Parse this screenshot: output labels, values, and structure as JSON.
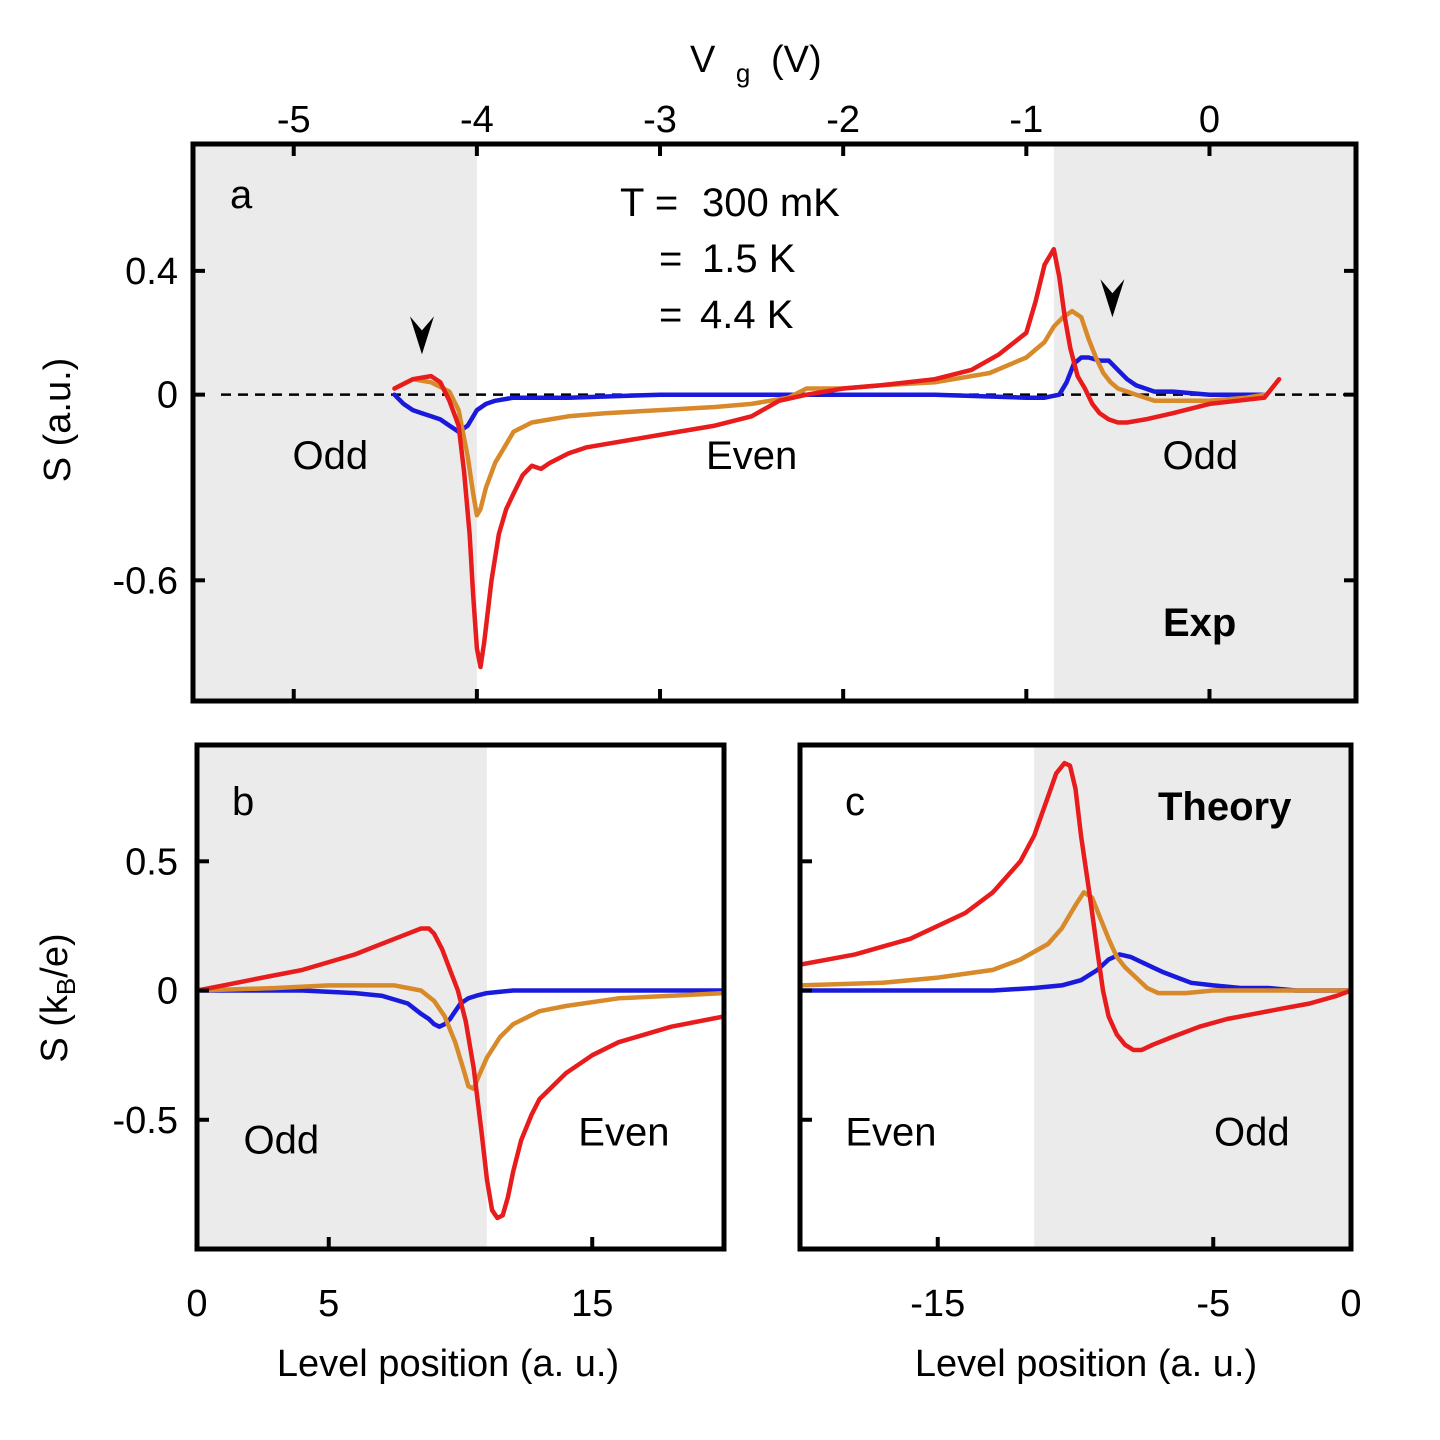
{
  "colors": {
    "t300mK": "#1a1adc",
    "t1_5K": "#d88a2a",
    "t4_4K": "#e81c1c",
    "shade": "#ebebeb",
    "frame": "#000000"
  },
  "legend": {
    "prefix_first": "T =",
    "prefix_rest": "=",
    "entries": [
      {
        "label": "300 mK",
        "color_key": "t300mK"
      },
      {
        "label": "1.5 K",
        "color_key": "t1_5K"
      },
      {
        "label": "4.4 K",
        "color_key": "t4_4K"
      }
    ]
  },
  "chart_data": [
    {
      "id": "a",
      "type": "line",
      "panel_label": "a",
      "tag": "Exp",
      "xlabel": "V g (V)",
      "xlabel_main": "V",
      "xlabel_sub": "g",
      "xlabel_unit": "(V)",
      "ylabel": "S (a.u.)",
      "xlim": [
        -5.55,
        0.8
      ],
      "ylim": [
        -0.99,
        0.81
      ],
      "xticks": [
        -5,
        -4,
        -3,
        -2,
        -1,
        0
      ],
      "xtick_labels": [
        "-5",
        "-4",
        "-3",
        "-2",
        "-1",
        "0"
      ],
      "yticks": [
        0.4,
        0,
        -0.6
      ],
      "ytick_labels": [
        "0.4",
        "0",
        "-0.6"
      ],
      "zero_line": "dashed",
      "shaded_ranges": [
        [
          -5.55,
          -4.0
        ],
        [
          -0.85,
          0.8
        ]
      ],
      "regions": [
        {
          "label": "Odd",
          "x": -4.8,
          "y": -0.24
        },
        {
          "label": "Even",
          "x": -2.5,
          "y": -0.24
        },
        {
          "label": "Odd",
          "x": -0.05,
          "y": -0.24
        }
      ],
      "annotations": [
        {
          "type": "arrowhead",
          "x": -4.3,
          "y": 0.13
        },
        {
          "type": "arrowhead",
          "x": -0.53,
          "y": 0.25
        }
      ],
      "series": [
        {
          "name": "300 mK",
          "color_key": "t300mK",
          "x": [
            -4.45,
            -4.4,
            -4.35,
            -4.3,
            -4.25,
            -4.2,
            -4.15,
            -4.1,
            -4.05,
            -4.0,
            -3.95,
            -3.9,
            -3.8,
            -3.5,
            -3.0,
            -2.5,
            -2.0,
            -1.5,
            -1.0,
            -0.9,
            -0.82,
            -0.78,
            -0.74,
            -0.7,
            -0.66,
            -0.6,
            -0.55,
            -0.5,
            -0.45,
            -0.4,
            -0.35,
            -0.3,
            -0.2,
            0.0,
            0.2,
            0.3
          ],
          "y": [
            0.0,
            -0.03,
            -0.05,
            -0.06,
            -0.07,
            -0.08,
            -0.1,
            -0.12,
            -0.1,
            -0.05,
            -0.03,
            -0.02,
            -0.01,
            -0.01,
            0.0,
            0.0,
            0.0,
            0.0,
            -0.01,
            -0.01,
            0.0,
            0.04,
            0.1,
            0.12,
            0.12,
            0.11,
            0.11,
            0.08,
            0.05,
            0.03,
            0.02,
            0.01,
            0.01,
            0.0,
            0.0,
            0.0
          ]
        },
        {
          "name": "1.5 K",
          "color_key": "t1_5K",
          "x": [
            -4.45,
            -4.35,
            -4.25,
            -4.15,
            -4.1,
            -4.05,
            -4.02,
            -4.0,
            -3.98,
            -3.95,
            -3.9,
            -3.85,
            -3.8,
            -3.7,
            -3.6,
            -3.5,
            -3.3,
            -3.0,
            -2.7,
            -2.5,
            -2.3,
            -2.2,
            -2.0,
            -1.8,
            -1.5,
            -1.2,
            -1.0,
            -0.9,
            -0.85,
            -0.8,
            -0.75,
            -0.7,
            -0.66,
            -0.62,
            -0.58,
            -0.54,
            -0.5,
            -0.45,
            -0.4,
            -0.3,
            -0.2,
            0.0,
            0.2,
            0.3
          ],
          "y": [
            0.02,
            0.05,
            0.04,
            0.01,
            -0.05,
            -0.2,
            -0.32,
            -0.39,
            -0.37,
            -0.3,
            -0.22,
            -0.17,
            -0.12,
            -0.09,
            -0.08,
            -0.07,
            -0.06,
            -0.05,
            -0.04,
            -0.03,
            -0.01,
            0.02,
            0.02,
            0.03,
            0.04,
            0.07,
            0.12,
            0.17,
            0.22,
            0.25,
            0.27,
            0.25,
            0.18,
            0.12,
            0.07,
            0.04,
            0.02,
            0.01,
            0.0,
            -0.02,
            -0.02,
            -0.02,
            -0.01,
            0.0
          ]
        },
        {
          "name": "4.4 K",
          "color_key": "t4_4K",
          "x": [
            -4.45,
            -4.35,
            -4.25,
            -4.2,
            -4.15,
            -4.1,
            -4.07,
            -4.04,
            -4.02,
            -4.0,
            -3.98,
            -3.96,
            -3.92,
            -3.88,
            -3.84,
            -3.8,
            -3.75,
            -3.7,
            -3.65,
            -3.6,
            -3.5,
            -3.4,
            -3.3,
            -3.0,
            -2.7,
            -2.5,
            -2.35,
            -2.2,
            -2.0,
            -1.8,
            -1.5,
            -1.3,
            -1.15,
            -1.0,
            -0.95,
            -0.9,
            -0.85,
            -0.82,
            -0.79,
            -0.76,
            -0.72,
            -0.68,
            -0.64,
            -0.6,
            -0.55,
            -0.5,
            -0.45,
            -0.35,
            -0.2,
            0.0,
            0.15,
            0.3,
            0.38
          ],
          "y": [
            0.02,
            0.05,
            0.06,
            0.04,
            -0.02,
            -0.1,
            -0.25,
            -0.45,
            -0.65,
            -0.82,
            -0.88,
            -0.8,
            -0.6,
            -0.45,
            -0.37,
            -0.32,
            -0.26,
            -0.23,
            -0.24,
            -0.22,
            -0.19,
            -0.17,
            -0.16,
            -0.13,
            -0.1,
            -0.07,
            -0.02,
            0.0,
            0.02,
            0.03,
            0.05,
            0.08,
            0.13,
            0.2,
            0.3,
            0.42,
            0.47,
            0.38,
            0.25,
            0.15,
            0.06,
            0.02,
            -0.03,
            -0.06,
            -0.08,
            -0.09,
            -0.09,
            -0.08,
            -0.06,
            -0.03,
            -0.02,
            -0.01,
            0.05
          ]
        }
      ]
    },
    {
      "id": "b",
      "type": "line",
      "panel_label": "b",
      "xlabel": "Level position (a. u.)",
      "ylabel": "S (kB/e)",
      "ylabel_main": "S  (k",
      "ylabel_sub": "B",
      "ylabel_end": "/e)",
      "xlim": [
        0,
        20
      ],
      "ylim": [
        -1.0,
        0.95
      ],
      "xticks": [
        0,
        5,
        15
      ],
      "xtick_labels": [
        "0",
        "5",
        "15"
      ],
      "yticks": [
        0.5,
        0,
        -0.5
      ],
      "ytick_labels": [
        "0.5",
        "0",
        "-0.5"
      ],
      "shaded_ranges": [
        [
          0,
          11.0
        ]
      ],
      "regions": [
        {
          "label": "Odd",
          "x": 3.2,
          "y": -0.63
        },
        {
          "label": "Even",
          "x": 16.2,
          "y": -0.6
        }
      ],
      "series": [
        {
          "name": "300 mK",
          "color_key": "t300mK",
          "x": [
            0,
            2,
            4,
            6,
            7,
            8,
            8.5,
            8.8,
            9.0,
            9.2,
            9.4,
            9.6,
            9.8,
            10.0,
            10.3,
            10.6,
            11.0,
            12,
            13,
            14,
            16,
            18,
            20
          ],
          "y": [
            0.0,
            0.0,
            0.0,
            -0.01,
            -0.02,
            -0.05,
            -0.09,
            -0.11,
            -0.13,
            -0.14,
            -0.13,
            -0.11,
            -0.08,
            -0.05,
            -0.03,
            -0.02,
            -0.01,
            0.0,
            0.0,
            0.0,
            0.0,
            0.0,
            0.0
          ]
        },
        {
          "name": "1.5 K",
          "color_key": "t1_5K",
          "x": [
            0,
            3,
            5,
            6,
            7,
            7.5,
            8,
            8.5,
            9,
            9.4,
            9.8,
            10.1,
            10.3,
            10.5,
            10.7,
            11.0,
            11.5,
            12,
            13,
            14,
            16,
            18,
            20
          ],
          "y": [
            0.0,
            0.01,
            0.02,
            0.02,
            0.02,
            0.02,
            0.01,
            0.0,
            -0.04,
            -0.1,
            -0.2,
            -0.3,
            -0.37,
            -0.38,
            -0.33,
            -0.26,
            -0.18,
            -0.13,
            -0.08,
            -0.06,
            -0.03,
            -0.02,
            -0.01
          ]
        },
        {
          "name": "4.4 K",
          "color_key": "t4_4K",
          "x": [
            0,
            1,
            2,
            3,
            4,
            5,
            6,
            7,
            7.5,
            8,
            8.5,
            8.8,
            9.0,
            9.3,
            9.6,
            9.9,
            10.2,
            10.5,
            10.8,
            11.0,
            11.2,
            11.4,
            11.6,
            11.8,
            12.0,
            12.3,
            12.7,
            13,
            14,
            15,
            16,
            18,
            20
          ],
          "y": [
            0.0,
            0.02,
            0.04,
            0.06,
            0.08,
            0.11,
            0.14,
            0.18,
            0.2,
            0.22,
            0.24,
            0.24,
            0.22,
            0.16,
            0.08,
            0.0,
            -0.12,
            -0.3,
            -0.55,
            -0.73,
            -0.85,
            -0.88,
            -0.87,
            -0.8,
            -0.7,
            -0.58,
            -0.48,
            -0.42,
            -0.32,
            -0.25,
            -0.2,
            -0.14,
            -0.1
          ]
        }
      ]
    },
    {
      "id": "c",
      "type": "line",
      "panel_label": "c",
      "tag": "Theory",
      "xlabel": "Level position (a. u.)",
      "ylabel": "",
      "xlim": [
        -20,
        0
      ],
      "ylim": [
        -1.0,
        0.95
      ],
      "xticks": [
        -15,
        -5,
        0
      ],
      "xtick_labels": [
        "-15",
        "-5",
        "0"
      ],
      "yticks": [
        0.5,
        0,
        -0.5
      ],
      "shaded_ranges": [
        [
          -11.5,
          0
        ]
      ],
      "regions": [
        {
          "label": "Even",
          "x": -16.7,
          "y": -0.6
        },
        {
          "label": "Odd",
          "x": -3.6,
          "y": -0.6
        }
      ],
      "series": [
        {
          "name": "300 mK",
          "color_key": "t300mK",
          "x": [
            -20,
            -16,
            -13,
            -11.5,
            -10.5,
            -9.8,
            -9.2,
            -8.8,
            -8.4,
            -8.0,
            -7.6,
            -7.2,
            -6.8,
            -6.3,
            -5.8,
            -5.0,
            -4.0,
            -3.0,
            -2.0,
            -1.0,
            0
          ],
          "y": [
            0.0,
            0.0,
            0.0,
            0.01,
            0.02,
            0.04,
            0.08,
            0.12,
            0.14,
            0.13,
            0.11,
            0.09,
            0.07,
            0.05,
            0.03,
            0.02,
            0.01,
            0.01,
            0.0,
            0.0,
            0.0
          ]
        },
        {
          "name": "1.5 K",
          "color_key": "t1_5K",
          "x": [
            -20,
            -17,
            -15,
            -13,
            -12,
            -11,
            -10.5,
            -10.0,
            -9.7,
            -9.4,
            -9.1,
            -8.8,
            -8.5,
            -8.2,
            -7.8,
            -7.4,
            -7.0,
            -6.0,
            -5.0,
            -4.0,
            -3.0,
            -2.0,
            -1.0,
            0
          ],
          "y": [
            0.02,
            0.03,
            0.05,
            0.08,
            0.12,
            0.18,
            0.24,
            0.33,
            0.38,
            0.36,
            0.28,
            0.2,
            0.13,
            0.09,
            0.05,
            0.01,
            -0.01,
            -0.01,
            0.0,
            0.0,
            0.0,
            0.0,
            0.0,
            0.0
          ]
        },
        {
          "name": "4.4 K",
          "color_key": "t4_4K",
          "x": [
            -20,
            -18,
            -16,
            -14,
            -13,
            -12,
            -11.5,
            -11.0,
            -10.7,
            -10.4,
            -10.2,
            -10.0,
            -9.8,
            -9.5,
            -9.2,
            -9.0,
            -8.8,
            -8.5,
            -8.2,
            -7.9,
            -7.6,
            -7.2,
            -6.5,
            -5.5,
            -4.5,
            -3.5,
            -2.5,
            -1.5,
            -0.5,
            0
          ],
          "y": [
            0.1,
            0.14,
            0.2,
            0.3,
            0.38,
            0.5,
            0.6,
            0.75,
            0.84,
            0.88,
            0.87,
            0.78,
            0.6,
            0.38,
            0.15,
            0.0,
            -0.1,
            -0.17,
            -0.21,
            -0.23,
            -0.23,
            -0.21,
            -0.18,
            -0.14,
            -0.11,
            -0.09,
            -0.07,
            -0.05,
            -0.02,
            0.0
          ]
        }
      ]
    }
  ]
}
